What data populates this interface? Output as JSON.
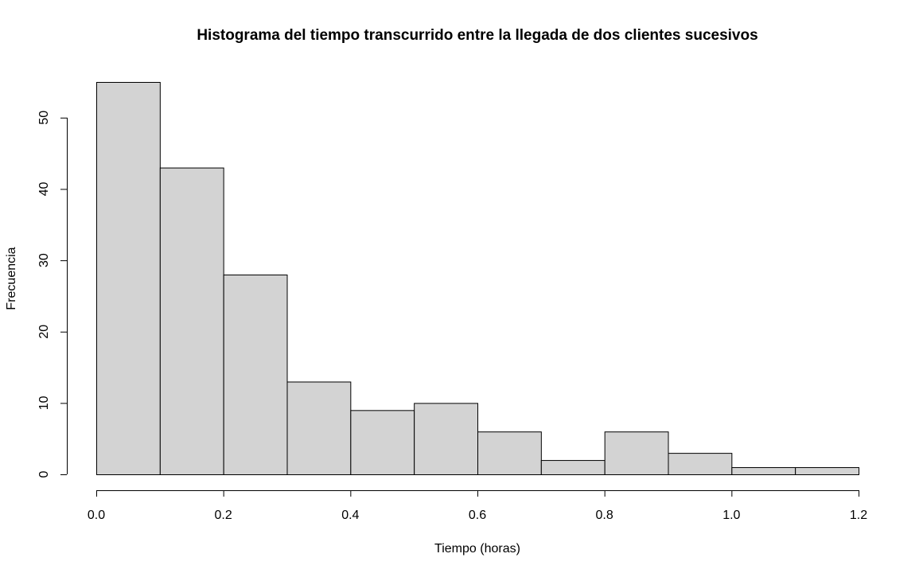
{
  "chart_data": {
    "type": "bar",
    "title": "Histograma del tiempo transcurrido entre la llegada de dos clientes sucesivos",
    "xlabel": "Tiempo (horas)",
    "ylabel": "Frecuencia",
    "bin_edges": [
      0.0,
      0.1,
      0.2,
      0.3,
      0.4,
      0.5,
      0.6,
      0.7,
      0.8,
      0.9,
      1.0,
      1.1,
      1.2
    ],
    "values": [
      55,
      43,
      28,
      13,
      9,
      10,
      6,
      2,
      6,
      3,
      1,
      1
    ],
    "xlim": [
      0.0,
      1.2
    ],
    "ylim": [
      0,
      55
    ],
    "x_ticks": [
      0.0,
      0.2,
      0.4,
      0.6,
      0.8,
      1.0,
      1.2
    ],
    "x_tick_labels": [
      "0.0",
      "0.2",
      "0.4",
      "0.6",
      "0.8",
      "1.0",
      "1.2"
    ],
    "y_ticks": [
      0,
      10,
      20,
      30,
      40,
      50
    ],
    "y_tick_labels": [
      "0",
      "10",
      "20",
      "30",
      "40",
      "50"
    ],
    "grid": false,
    "bar_fill": "#d3d3d3",
    "bar_stroke": "#000000"
  }
}
